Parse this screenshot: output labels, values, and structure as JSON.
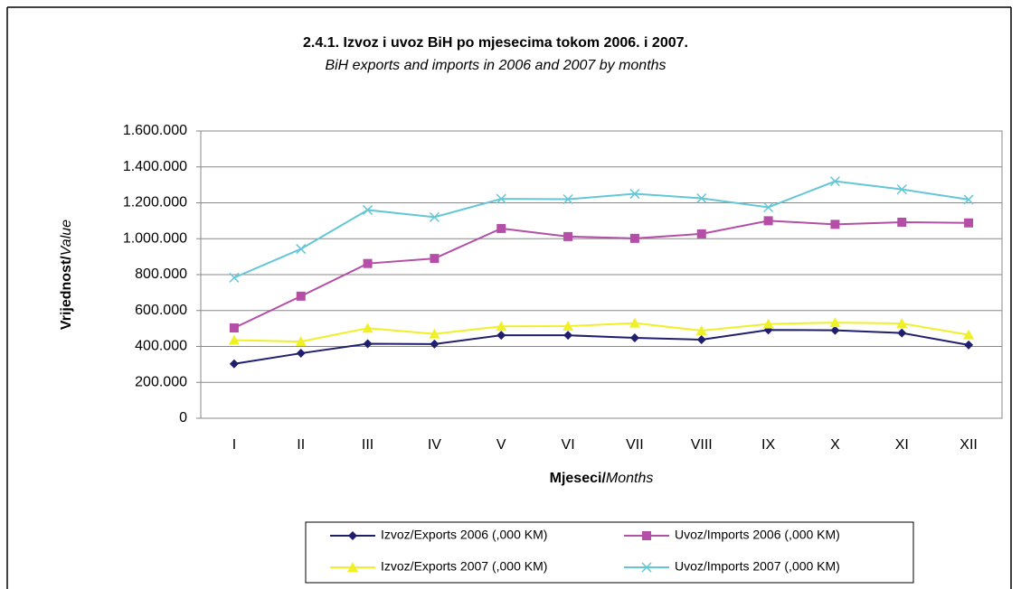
{
  "chart_data": {
    "type": "line",
    "title": "2.4.1. Izvoz i uvoz BiH po mjesecima tokom 2006. i 2007.",
    "subtitle": "BiH exports and imports in 2006 and 2007 by months",
    "y_label": {
      "bold": "Vrijednost/",
      "italic": "Value"
    },
    "x_label": {
      "bold": "Mjeseci/",
      "italic": "Months"
    },
    "categories": [
      "I",
      "II",
      "III",
      "IV",
      "V",
      "VI",
      "VII",
      "VIII",
      "IX",
      "X",
      "XI",
      "XII"
    ],
    "ylim": [
      0,
      1600000
    ],
    "yticks": [
      0,
      {
        "value": 200000,
        "label": "200.000"
      },
      {
        "value": 400000,
        "label": "400.000"
      },
      {
        "value": 600000,
        "label": "600.000"
      },
      {
        "value": 800000,
        "label": "800.000"
      },
      {
        "value": 1000000,
        "label": "1.000.000"
      },
      {
        "value": 1200000,
        "label": "1.200.000"
      },
      {
        "value": 1400000,
        "label": "1.400.000"
      },
      {
        "value": 1600000,
        "label": "1.600.000"
      }
    ],
    "grid": true,
    "legend": "bottom",
    "series": [
      {
        "name": "Izvoz/Exports 2006 (,000 KM)",
        "color": "#1f1f6e",
        "marker": "diamond",
        "values": [
          303000,
          362000,
          415000,
          413000,
          462000,
          462000,
          448000,
          438000,
          492000,
          490000,
          475000,
          408000
        ]
      },
      {
        "name": "Uvoz/Imports 2006 (,000 KM)",
        "color": "#b44ea6",
        "marker": "square",
        "values": [
          503000,
          680000,
          862000,
          890000,
          1057000,
          1012000,
          1002000,
          1027000,
          1100000,
          1080000,
          1092000,
          1088000
        ]
      },
      {
        "name": "Izvoz/Exports 2007 (,000 KM)",
        "color": "#f0f028",
        "marker": "triangle",
        "values": [
          435000,
          427000,
          502000,
          470000,
          512000,
          513000,
          530000,
          488000,
          525000,
          533000,
          528000,
          465000
        ]
      },
      {
        "name": "Uvoz/Imports 2007 (,000 KM)",
        "color": "#63c7d6",
        "marker": "x",
        "values": [
          783000,
          943000,
          1160000,
          1120000,
          1222000,
          1220000,
          1250000,
          1225000,
          1175000,
          1320000,
          1275000,
          1218000
        ]
      }
    ]
  }
}
